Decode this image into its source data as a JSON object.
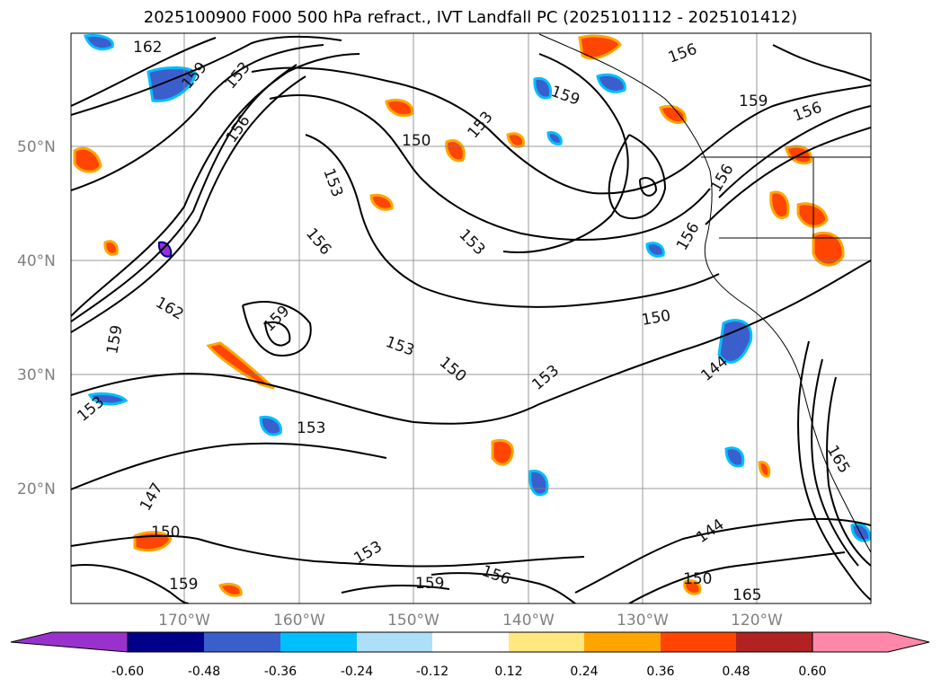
{
  "title": "2025100900 F000 500 hPa refract., IVT Landfall PC (2025101112 - 2025101412)",
  "map": {
    "lat_labels": [
      "50°N",
      "40°N",
      "30°N",
      "20°N"
    ],
    "lon_labels": [
      "170°W",
      "160°W",
      "150°W",
      "140°W",
      "130°W",
      "120°W"
    ],
    "contour_labels": [
      {
        "text": "162"
      },
      {
        "text": "159"
      },
      {
        "text": "153"
      },
      {
        "text": "156"
      },
      {
        "text": "150"
      },
      {
        "text": "153"
      },
      {
        "text": "159"
      },
      {
        "text": "156"
      },
      {
        "text": "159"
      },
      {
        "text": "156"
      },
      {
        "text": "150"
      },
      {
        "text": "153"
      },
      {
        "text": "156"
      },
      {
        "text": "153"
      },
      {
        "text": "156"
      },
      {
        "text": "162"
      },
      {
        "text": "159"
      },
      {
        "text": "153"
      },
      {
        "text": "150"
      },
      {
        "text": "153"
      },
      {
        "text": "144"
      },
      {
        "text": "153"
      },
      {
        "text": "153"
      },
      {
        "text": "147"
      },
      {
        "text": "150"
      },
      {
        "text": "159"
      },
      {
        "text": "150"
      },
      {
        "text": "144"
      },
      {
        "text": "165"
      },
      {
        "text": "156"
      },
      {
        "text": "159"
      },
      {
        "text": "153"
      },
      {
        "text": "156"
      },
      {
        "text": "159"
      },
      {
        "text": "165"
      }
    ],
    "colors": {
      "contour": "#000000",
      "grid": "#808080",
      "coast": "#000000"
    }
  },
  "colorbar": {
    "ticks": [
      "-0.60",
      "-0.48",
      "-0.36",
      "-0.24",
      "-0.12",
      "0.12",
      "0.24",
      "0.36",
      "0.48",
      "0.60"
    ],
    "colors": [
      "#9932CC",
      "#00008B",
      "#3A5FCD",
      "#00BFFF",
      "#ADE0F8",
      "#FFFFFF",
      "#FFE880",
      "#FFA500",
      "#FF4500",
      "#B22222",
      "#FF88AA"
    ]
  }
}
